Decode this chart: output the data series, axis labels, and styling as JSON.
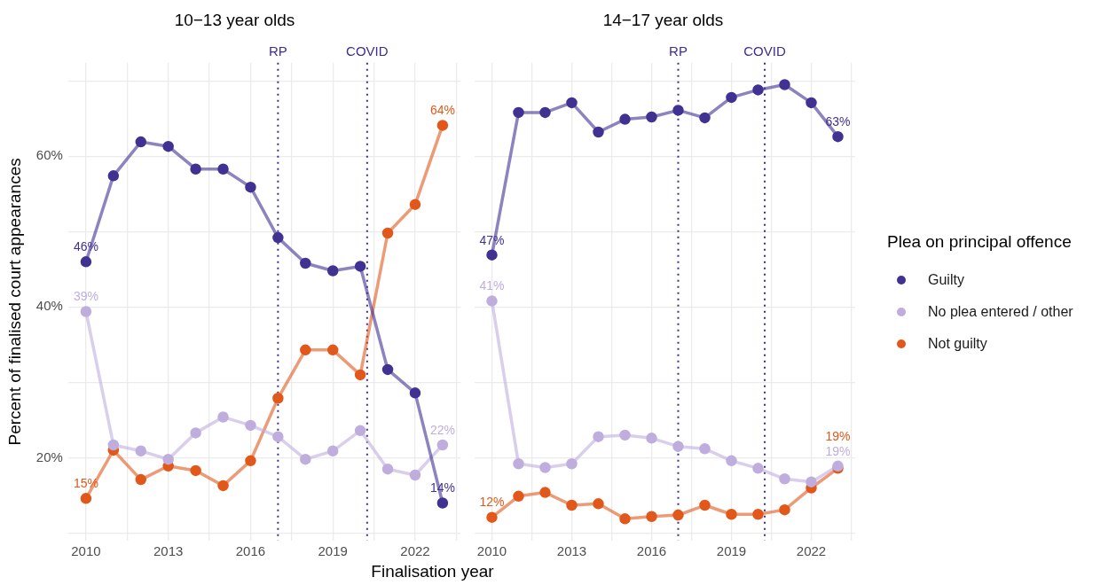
{
  "chart_data": [
    {
      "type": "line",
      "title": "10−13 year olds",
      "xlabel": "Finalisation year",
      "ylabel": "Percent of finalised court appearances",
      "marker": "circle",
      "grid": true,
      "legend": false,
      "x": [
        2010,
        2011,
        2012,
        2013,
        2014,
        2015,
        2016,
        2017,
        2018,
        2019,
        2020,
        2021,
        2022,
        2023
      ],
      "xlim": [
        2009.35,
        2023.65
      ],
      "xticks": [
        2010,
        {
          "value": 2011.5,
          "label": null
        },
        2013,
        {
          "value": 2014.5,
          "label": null
        },
        2016,
        {
          "value": 2017.5,
          "label": null
        },
        2019,
        {
          "value": 2020.5,
          "label": null
        },
        2022,
        {
          "value": 2023.5,
          "label": null
        }
      ],
      "ylim": [
        9,
        72.4
      ],
      "yticks": [
        {
          "value": 10,
          "label": null
        },
        {
          "value": 20,
          "label": "20%"
        },
        {
          "value": 30,
          "label": null
        },
        {
          "value": 40,
          "label": "40%"
        },
        {
          "value": 50,
          "label": null
        },
        {
          "value": 60,
          "label": "60%"
        },
        {
          "value": 70,
          "label": null
        }
      ],
      "ref_lines": [
        {
          "axis": "x",
          "value": 2017,
          "label": "RP",
          "color": "#3f2d8f",
          "line_style": "dotted"
        },
        {
          "axis": "x",
          "value": 2020.25,
          "label": "COVID",
          "color": "#3f2d8f",
          "line_style": "dotted"
        }
      ],
      "series": [
        {
          "color": "#403293",
          "values": [
            46.0,
            57.4,
            61.9,
            61.3,
            58.3,
            58.3,
            55.9,
            49.2,
            45.8,
            44.8,
            45.4,
            31.7,
            28.6,
            14.0
          ],
          "value_labels": [
            "46%",
            null,
            null,
            null,
            null,
            null,
            null,
            null,
            null,
            null,
            null,
            null,
            null,
            "14%"
          ]
        },
        {
          "color": "#bfaedd",
          "values": [
            39.4,
            21.7,
            20.9,
            19.8,
            23.3,
            25.4,
            24.3,
            22.8,
            19.8,
            20.9,
            23.6,
            18.5,
            17.7,
            21.7
          ],
          "value_labels": [
            "39%",
            null,
            null,
            null,
            null,
            null,
            null,
            null,
            null,
            null,
            null,
            null,
            null,
            "22%"
          ]
        },
        {
          "color": "#e1581a",
          "values": [
            14.6,
            21.0,
            17.1,
            18.9,
            18.3,
            16.3,
            19.6,
            27.9,
            34.3,
            34.3,
            31.0,
            49.8,
            53.6,
            64.1
          ],
          "value_labels": [
            "15%",
            null,
            null,
            null,
            null,
            null,
            null,
            null,
            null,
            null,
            null,
            null,
            null,
            "64%"
          ]
        }
      ]
    },
    {
      "type": "line",
      "title": "14−17 year olds",
      "marker": "circle",
      "grid": true,
      "legend": "right",
      "legend_title": "Plea on principal offence",
      "tick_labels": "x",
      "x": [
        2010,
        2011,
        2012,
        2013,
        2014,
        2015,
        2016,
        2017,
        2018,
        2019,
        2020,
        2021,
        2022,
        2023
      ],
      "xlim": [
        2009.35,
        2023.65
      ],
      "xticks": [
        2010,
        {
          "value": 2011.5,
          "label": null
        },
        2013,
        {
          "value": 2014.5,
          "label": null
        },
        2016,
        {
          "value": 2017.5,
          "label": null
        },
        2019,
        {
          "value": 2020.5,
          "label": null
        },
        2022,
        {
          "value": 2023.5,
          "label": null
        }
      ],
      "ylim": [
        9,
        72.4
      ],
      "yticks": [
        {
          "value": 10,
          "label": null
        },
        {
          "value": 20,
          "label": null
        },
        {
          "value": 30,
          "label": null
        },
        {
          "value": 40,
          "label": null
        },
        {
          "value": 50,
          "label": null
        },
        {
          "value": 60,
          "label": null
        },
        {
          "value": 70,
          "label": null
        }
      ],
      "ref_lines": [
        {
          "axis": "x",
          "value": 2017,
          "label": "RP",
          "color": "#3f2d8f",
          "line_style": "dotted"
        },
        {
          "axis": "x",
          "value": 2020.25,
          "label": "COVID",
          "color": "#3f2d8f",
          "line_style": "dotted"
        }
      ],
      "series": [
        {
          "name": "Guilty",
          "color": "#403293",
          "values": [
            46.9,
            65.8,
            65.8,
            67.1,
            63.2,
            64.9,
            65.2,
            66.1,
            65.1,
            67.8,
            68.8,
            69.5,
            67.1,
            62.6
          ],
          "value_labels": [
            "47%",
            null,
            null,
            null,
            null,
            null,
            null,
            null,
            null,
            null,
            null,
            null,
            null,
            "63%"
          ]
        },
        {
          "name": "No plea entered / other",
          "color": "#bfaedd",
          "values": [
            40.8,
            19.2,
            18.7,
            19.2,
            22.8,
            23.0,
            22.6,
            21.5,
            21.2,
            19.6,
            18.6,
            17.2,
            16.8,
            18.9
          ],
          "value_labels": [
            "41%",
            null,
            null,
            null,
            null,
            null,
            null,
            null,
            null,
            null,
            null,
            null,
            null,
            "19%"
          ]
        },
        {
          "name": "Not guilty",
          "color": "#e1581a",
          "values": [
            12.1,
            14.9,
            15.4,
            13.7,
            13.9,
            11.9,
            12.2,
            12.4,
            13.7,
            12.5,
            12.5,
            13.1,
            16.0,
            18.6
          ],
          "value_labels": [
            "12%",
            null,
            null,
            null,
            null,
            null,
            null,
            null,
            null,
            null,
            null,
            null,
            null,
            "19%"
          ]
        }
      ]
    }
  ]
}
